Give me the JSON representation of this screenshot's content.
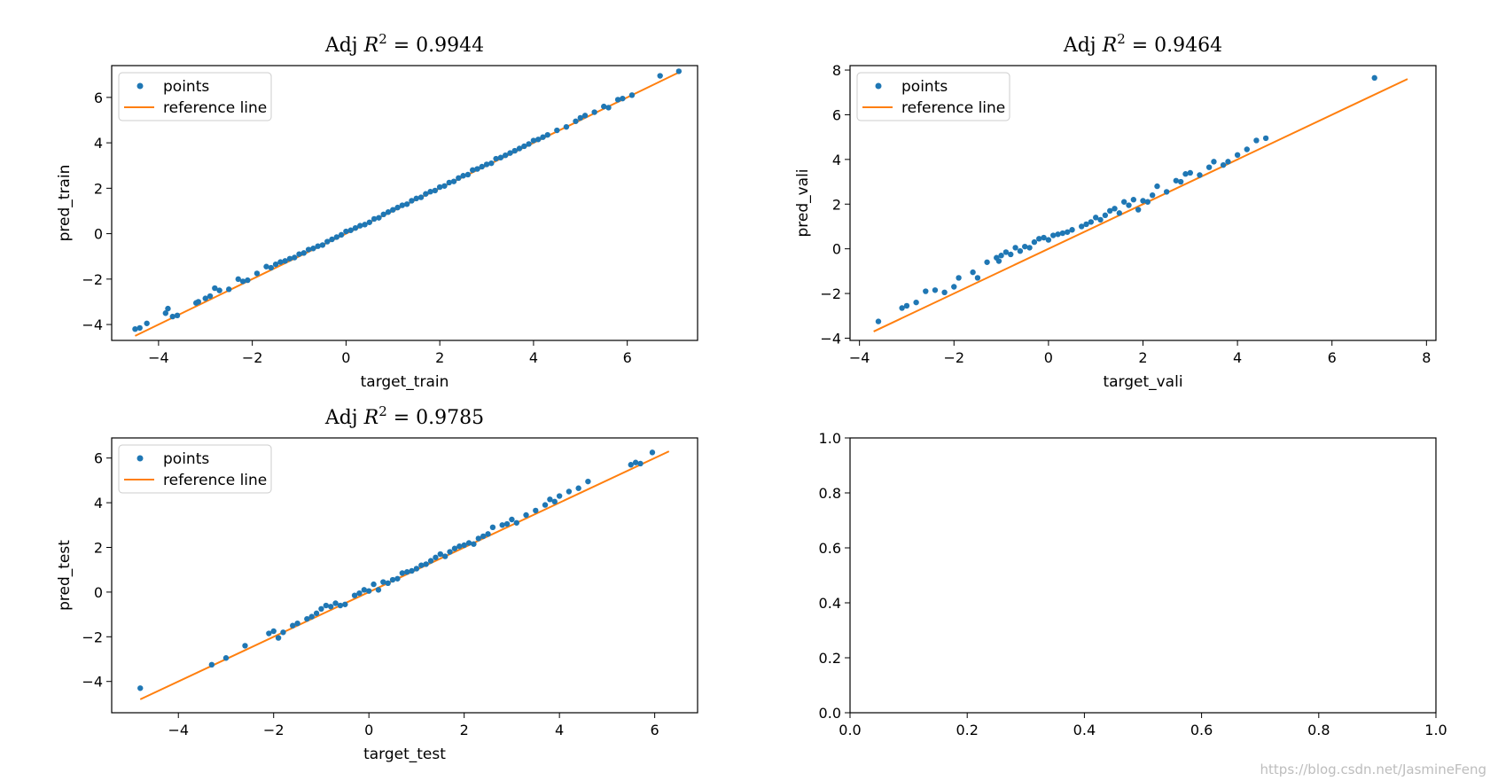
{
  "colors": {
    "points": "#1f77b4",
    "reference_line": "#ff7f0e",
    "axes": "#000000"
  },
  "watermark": "https://blog.csdn.net/JasmineFeng",
  "chart_data": [
    {
      "id": "train",
      "type": "scatter",
      "title": "Adj R² = 0.9944",
      "title_prefix": "Adj ",
      "title_var": "R",
      "title_sup": "2",
      "title_suffix": " = 0.9944",
      "xlabel": "target_train",
      "ylabel": "pred_train",
      "xlim": [
        -5.0,
        7.5
      ],
      "ylim": [
        -4.7,
        7.4
      ],
      "xticks": [
        -4,
        -2,
        0,
        2,
        4,
        6
      ],
      "yticks": [
        -4,
        -2,
        0,
        2,
        4,
        6
      ],
      "legend": {
        "position": "upper-left",
        "entries": [
          "points",
          "reference line"
        ]
      },
      "reference_line": {
        "x": [
          -4.5,
          7.1
        ],
        "y": [
          -4.5,
          7.1
        ]
      },
      "points": {
        "x": [
          -4.5,
          -4.4,
          -4.25,
          -3.85,
          -3.8,
          -3.7,
          -3.6,
          -3.2,
          -3.15,
          -3.0,
          -2.9,
          -2.8,
          -2.7,
          -2.5,
          -2.3,
          -2.2,
          -2.1,
          -1.9,
          -1.7,
          -1.6,
          -1.5,
          -1.4,
          -1.3,
          -1.2,
          -1.1,
          -1.0,
          -0.9,
          -0.8,
          -0.7,
          -0.6,
          -0.5,
          -0.4,
          -0.3,
          -0.2,
          -0.1,
          0.0,
          0.1,
          0.2,
          0.3,
          0.4,
          0.5,
          0.6,
          0.7,
          0.8,
          0.9,
          1.0,
          1.1,
          1.2,
          1.3,
          1.4,
          1.5,
          1.6,
          1.7,
          1.8,
          1.9,
          2.0,
          2.1,
          2.2,
          2.3,
          2.4,
          2.5,
          2.6,
          2.7,
          2.8,
          2.9,
          3.0,
          3.1,
          3.2,
          3.3,
          3.4,
          3.5,
          3.6,
          3.7,
          3.8,
          3.9,
          4.0,
          4.1,
          4.2,
          4.3,
          4.5,
          4.7,
          4.9,
          5.0,
          5.1,
          5.3,
          5.5,
          5.6,
          5.8,
          5.9,
          6.1,
          6.7,
          7.1
        ],
        "y": [
          -4.2,
          -4.15,
          -3.95,
          -3.5,
          -3.3,
          -3.65,
          -3.6,
          -3.05,
          -3.0,
          -2.85,
          -2.75,
          -2.4,
          -2.5,
          -2.45,
          -2.0,
          -2.1,
          -2.05,
          -1.75,
          -1.45,
          -1.5,
          -1.35,
          -1.25,
          -1.2,
          -1.1,
          -1.05,
          -0.9,
          -0.85,
          -0.7,
          -0.65,
          -0.55,
          -0.5,
          -0.35,
          -0.25,
          -0.15,
          -0.05,
          0.1,
          0.15,
          0.25,
          0.35,
          0.4,
          0.5,
          0.65,
          0.7,
          0.85,
          0.95,
          1.05,
          1.15,
          1.25,
          1.3,
          1.45,
          1.55,
          1.6,
          1.75,
          1.85,
          1.9,
          2.05,
          2.1,
          2.25,
          2.3,
          2.45,
          2.55,
          2.6,
          2.8,
          2.85,
          2.95,
          3.05,
          3.1,
          3.3,
          3.35,
          3.45,
          3.55,
          3.65,
          3.75,
          3.85,
          3.95,
          4.1,
          4.15,
          4.25,
          4.35,
          4.55,
          4.7,
          4.95,
          5.1,
          5.2,
          5.35,
          5.6,
          5.55,
          5.9,
          5.95,
          6.1,
          6.95,
          7.15
        ]
      }
    },
    {
      "id": "vali",
      "type": "scatter",
      "title": "Adj R² = 0.9464",
      "title_prefix": "Adj ",
      "title_var": "R",
      "title_sup": "2",
      "title_suffix": " = 0.9464",
      "xlabel": "target_vali",
      "ylabel": "pred_vali",
      "xlim": [
        -4.2,
        8.2
      ],
      "ylim": [
        -4.1,
        8.2
      ],
      "xticks": [
        -4,
        -2,
        0,
        2,
        4,
        6,
        8
      ],
      "yticks": [
        -4,
        -2,
        0,
        2,
        4,
        6,
        8
      ],
      "legend": {
        "position": "upper-left",
        "entries": [
          "points",
          "reference line"
        ]
      },
      "reference_line": {
        "x": [
          -3.7,
          7.6
        ],
        "y": [
          -3.7,
          7.6
        ]
      },
      "points": {
        "x": [
          -3.6,
          -3.1,
          -3.0,
          -2.8,
          -2.6,
          -2.4,
          -2.2,
          -2.0,
          -1.9,
          -1.6,
          -1.5,
          -1.3,
          -1.1,
          -1.05,
          -1.0,
          -0.9,
          -0.8,
          -0.7,
          -0.6,
          -0.5,
          -0.4,
          -0.3,
          -0.2,
          -0.1,
          0.0,
          0.1,
          0.2,
          0.3,
          0.4,
          0.5,
          0.7,
          0.8,
          0.9,
          1.0,
          1.1,
          1.2,
          1.3,
          1.4,
          1.5,
          1.6,
          1.7,
          1.8,
          1.9,
          2.0,
          2.1,
          2.2,
          2.3,
          2.5,
          2.7,
          2.8,
          2.9,
          3.0,
          3.2,
          3.4,
          3.5,
          3.7,
          3.8,
          4.0,
          4.2,
          4.4,
          4.6,
          6.9
        ],
        "y": [
          -3.25,
          -2.65,
          -2.55,
          -2.4,
          -1.9,
          -1.85,
          -1.95,
          -1.7,
          -1.3,
          -1.05,
          -1.3,
          -0.6,
          -0.4,
          -0.55,
          -0.3,
          -0.15,
          -0.25,
          0.05,
          -0.1,
          0.1,
          0.05,
          0.3,
          0.45,
          0.5,
          0.4,
          0.6,
          0.65,
          0.7,
          0.75,
          0.85,
          1.0,
          1.1,
          1.2,
          1.4,
          1.3,
          1.5,
          1.7,
          1.8,
          1.6,
          2.1,
          1.95,
          2.2,
          1.75,
          2.15,
          2.1,
          2.4,
          2.8,
          2.55,
          3.05,
          3.0,
          3.35,
          3.4,
          3.3,
          3.65,
          3.9,
          3.75,
          3.9,
          4.2,
          4.45,
          4.85,
          4.95,
          7.65
        ]
      }
    },
    {
      "id": "test",
      "type": "scatter",
      "title": "Adj R² = 0.9785",
      "title_prefix": "Adj ",
      "title_var": "R",
      "title_sup": "2",
      "title_suffix": " = 0.9785",
      "xlabel": "target_test",
      "ylabel": "pred_test",
      "xlim": [
        -5.4,
        6.9
      ],
      "ylim": [
        -5.4,
        6.9
      ],
      "xticks": [
        -4,
        -2,
        0,
        2,
        4,
        6
      ],
      "yticks": [
        -4,
        -2,
        0,
        2,
        4,
        6
      ],
      "legend": {
        "position": "upper-left",
        "entries": [
          "points",
          "reference line"
        ]
      },
      "reference_line": {
        "x": [
          -4.8,
          6.3
        ],
        "y": [
          -4.8,
          6.3
        ]
      },
      "points": {
        "x": [
          -4.8,
          -3.3,
          -3.0,
          -2.6,
          -2.1,
          -2.0,
          -1.9,
          -1.8,
          -1.6,
          -1.5,
          -1.3,
          -1.2,
          -1.1,
          -1.0,
          -0.9,
          -0.8,
          -0.7,
          -0.6,
          -0.5,
          -0.3,
          -0.2,
          -0.1,
          0.0,
          0.1,
          0.2,
          0.3,
          0.4,
          0.5,
          0.6,
          0.7,
          0.8,
          0.9,
          1.0,
          1.1,
          1.2,
          1.3,
          1.4,
          1.5,
          1.6,
          1.7,
          1.8,
          1.9,
          2.0,
          2.1,
          2.2,
          2.3,
          2.4,
          2.5,
          2.6,
          2.8,
          2.9,
          3.0,
          3.1,
          3.3,
          3.5,
          3.7,
          3.8,
          3.9,
          4.0,
          4.2,
          4.4,
          4.6,
          5.5,
          5.6,
          5.7,
          5.95
        ],
        "y": [
          -4.3,
          -3.25,
          -2.95,
          -2.4,
          -1.85,
          -1.75,
          -2.05,
          -1.8,
          -1.5,
          -1.4,
          -1.2,
          -1.1,
          -0.95,
          -0.75,
          -0.6,
          -0.65,
          -0.5,
          -0.6,
          -0.55,
          -0.15,
          -0.05,
          0.1,
          0.05,
          0.35,
          0.1,
          0.45,
          0.4,
          0.55,
          0.6,
          0.85,
          0.9,
          0.95,
          1.05,
          1.2,
          1.25,
          1.4,
          1.55,
          1.7,
          1.6,
          1.8,
          1.95,
          2.05,
          2.1,
          2.2,
          2.15,
          2.4,
          2.5,
          2.6,
          2.9,
          3.0,
          3.05,
          3.25,
          3.1,
          3.45,
          3.65,
          3.9,
          4.15,
          4.05,
          4.3,
          4.5,
          4.65,
          4.95,
          5.7,
          5.8,
          5.75,
          6.25
        ]
      }
    },
    {
      "id": "empty",
      "type": "scatter",
      "title": "",
      "xlabel": "",
      "ylabel": "",
      "xlim": [
        0,
        1
      ],
      "ylim": [
        0,
        1
      ],
      "xticks": [
        0.0,
        0.2,
        0.4,
        0.6,
        0.8,
        1.0
      ],
      "yticks": [
        0.0,
        0.2,
        0.4,
        0.6,
        0.8,
        1.0
      ],
      "xtick_labels": [
        "0.0",
        "0.2",
        "0.4",
        "0.6",
        "0.8",
        "1.0"
      ],
      "ytick_labels": [
        "0.0",
        "0.2",
        "0.4",
        "0.6",
        "0.8",
        "1.0"
      ],
      "points": {
        "x": [],
        "y": []
      }
    }
  ]
}
